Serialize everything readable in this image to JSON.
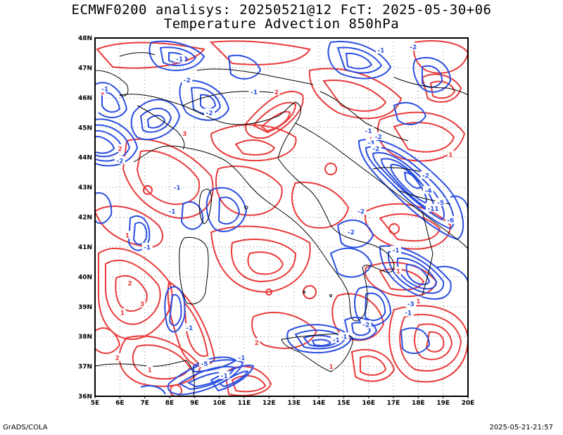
{
  "header": {
    "line1": "ECMWF0200 analisys: 20250521@12 FcT: 2025-05-30+06",
    "line2": "Temperature Advection 850hPa"
  },
  "footer": {
    "left": "GrADS/COLA",
    "right": "2025-05-21-21:57"
  },
  "map": {
    "lon_range": [
      5,
      20
    ],
    "lat_range": [
      36,
      48
    ],
    "lon_labels": [
      "5E",
      "6E",
      "7E",
      "8E",
      "9E",
      "10E",
      "11E",
      "12E",
      "13E",
      "14E",
      "15E",
      "16E",
      "17E",
      "18E",
      "19E",
      "20E"
    ],
    "lat_labels": [
      "36N",
      "37N",
      "38N",
      "39N",
      "40N",
      "41N",
      "42N",
      "43N",
      "44N",
      "45N",
      "46N",
      "47N",
      "48N"
    ],
    "grid": true,
    "colors": {
      "warm_advection": "#e83a3a",
      "cold_advection": "#2a4ee0",
      "coastline": "#000000",
      "grid": "#888888"
    },
    "contour_labels_warm": [
      {
        "text": "1",
        "lon": 5.3,
        "lat": 46.2
      },
      {
        "text": "2",
        "lon": 6.0,
        "lat": 44.3
      },
      {
        "text": "1",
        "lon": 6.3,
        "lat": 41.4
      },
      {
        "text": "2",
        "lon": 6.4,
        "lat": 39.8
      },
      {
        "text": "3",
        "lon": 6.9,
        "lat": 39.1
      },
      {
        "text": "1",
        "lon": 6.1,
        "lat": 38.8
      },
      {
        "text": "2",
        "lon": 5.9,
        "lat": 37.3
      },
      {
        "text": "1",
        "lon": 7.2,
        "lat": 36.9
      },
      {
        "text": "2",
        "lon": 12.3,
        "lat": 46.2
      },
      {
        "text": "1",
        "lon": 17.2,
        "lat": 40.2
      },
      {
        "text": "1",
        "lon": 18.0,
        "lat": 39.2
      },
      {
        "text": "1",
        "lon": 14.5,
        "lat": 37.0
      },
      {
        "text": "1",
        "lon": 16.1,
        "lat": 44.6
      },
      {
        "text": "3",
        "lon": 8.6,
        "lat": 44.8
      },
      {
        "text": "2",
        "lon": 11.5,
        "lat": 37.8
      },
      {
        "text": "1",
        "lon": 19.3,
        "lat": 44.1
      }
    ],
    "contour_labels_cold": [
      {
        "text": "-1",
        "lon": 5.4,
        "lat": 46.3
      },
      {
        "text": "-2",
        "lon": 6.0,
        "lat": 43.9
      },
      {
        "text": "-1",
        "lon": 7.1,
        "lat": 41.0
      },
      {
        "text": "-1",
        "lon": 8.4,
        "lat": 47.3
      },
      {
        "text": "-2",
        "lon": 8.7,
        "lat": 46.6
      },
      {
        "text": "-1",
        "lon": 11.4,
        "lat": 46.2
      },
      {
        "text": "-2",
        "lon": 9.6,
        "lat": 45.5
      },
      {
        "text": "-1",
        "lon": 8.3,
        "lat": 43.0
      },
      {
        "text": "-1",
        "lon": 8.1,
        "lat": 42.2
      },
      {
        "text": "-1",
        "lon": 16.5,
        "lat": 47.6
      },
      {
        "text": "-2",
        "lon": 17.8,
        "lat": 47.7
      },
      {
        "text": "-1",
        "lon": 16.0,
        "lat": 44.9
      },
      {
        "text": "-2",
        "lon": 16.4,
        "lat": 44.7
      },
      {
        "text": "-3",
        "lon": 16.1,
        "lat": 44.5
      },
      {
        "text": "-2",
        "lon": 16.3,
        "lat": 44.3
      },
      {
        "text": "-2",
        "lon": 18.3,
        "lat": 43.4
      },
      {
        "text": "-2",
        "lon": 15.7,
        "lat": 42.2
      },
      {
        "text": "-2",
        "lon": 15.3,
        "lat": 41.5
      },
      {
        "text": "-1",
        "lon": 17.1,
        "lat": 40.9
      },
      {
        "text": "-4",
        "lon": 18.4,
        "lat": 42.9
      },
      {
        "text": "-11",
        "lon": 18.6,
        "lat": 42.3
      },
      {
        "text": "-6",
        "lon": 19.3,
        "lat": 41.9
      },
      {
        "text": "-5",
        "lon": 18.9,
        "lat": 42.5
      },
      {
        "text": "-3",
        "lon": 17.7,
        "lat": 39.1
      },
      {
        "text": "-1",
        "lon": 17.6,
        "lat": 38.8
      },
      {
        "text": "-2",
        "lon": 15.9,
        "lat": 38.4
      },
      {
        "text": "-1",
        "lon": 15.0,
        "lat": 38.0
      },
      {
        "text": "-1",
        "lon": 14.7,
        "lat": 37.9
      },
      {
        "text": "-1",
        "lon": 8.8,
        "lat": 38.3
      },
      {
        "text": "-1",
        "lon": 10.9,
        "lat": 37.3
      },
      {
        "text": "-5",
        "lon": 9.4,
        "lat": 37.1
      },
      {
        "text": "-1",
        "lon": 10.2,
        "lat": 36.7
      }
    ]
  }
}
